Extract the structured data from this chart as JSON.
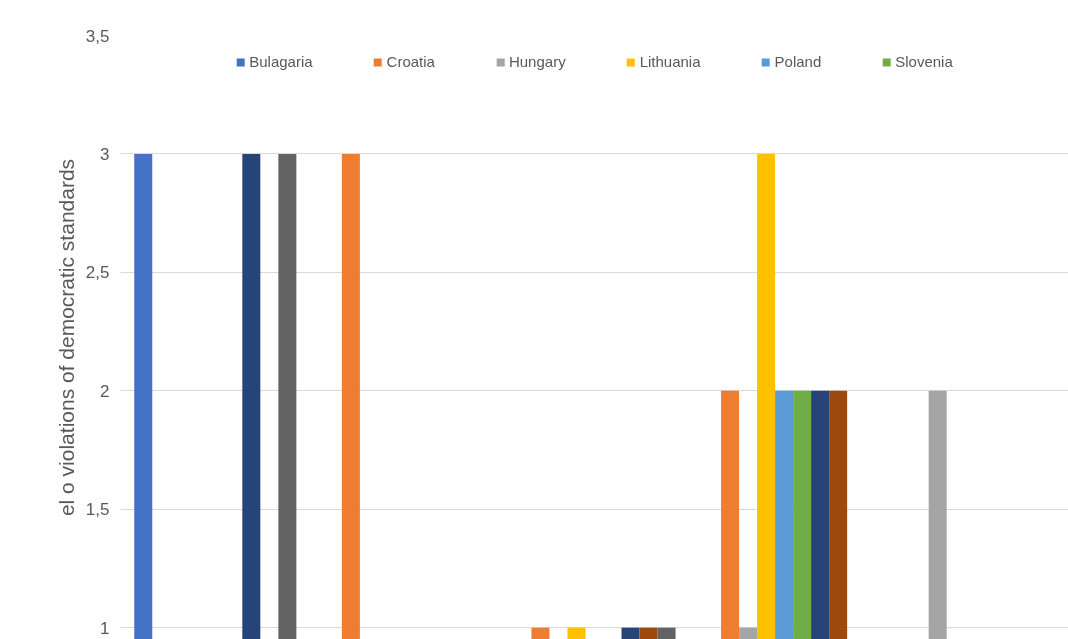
{
  "chart_data": {
    "type": "bar",
    "ylabel": "el o violations of democratic standards",
    "categories": [
      null,
      null,
      null,
      null,
      null
    ],
    "ylim": [
      0.95,
      3.5
    ],
    "yticks": [
      1,
      {
        "value": 1.5,
        "label": "1,5"
      },
      2,
      {
        "value": 2.5,
        "label": "2,5"
      },
      3,
      {
        "value": 3.5,
        "label": "3,5"
      }
    ],
    "grid": "y",
    "legend": "top",
    "tick_labels": "y",
    "series": [
      {
        "name": "Bulagaria",
        "color": "#4472c4",
        "values": [
          3,
          null,
          null,
          null,
          null
        ]
      },
      {
        "name": "Croatia",
        "color": "#ed7d31",
        "values": [
          null,
          3,
          1,
          2,
          null
        ]
      },
      {
        "name": "Hungary",
        "color": "#a5a5a5",
        "values": [
          null,
          null,
          null,
          1,
          2
        ]
      },
      {
        "name": "Lithuania",
        "color": "#ffc000",
        "values": [
          null,
          null,
          1,
          3,
          null
        ]
      },
      {
        "name": "Poland",
        "color": "#5b9bd5",
        "values": [
          null,
          null,
          null,
          2,
          null
        ]
      },
      {
        "name": "Slovenia",
        "color": "#70ad47",
        "values": [
          null,
          null,
          null,
          2,
          null
        ]
      },
      {
        "color": "#264478",
        "values": [
          3,
          null,
          1,
          2,
          null
        ]
      },
      {
        "color": "#9e480e",
        "values": [
          null,
          null,
          1,
          2,
          null
        ]
      },
      {
        "color": "#636363",
        "values": [
          3,
          null,
          1,
          null,
          null
        ]
      }
    ]
  }
}
